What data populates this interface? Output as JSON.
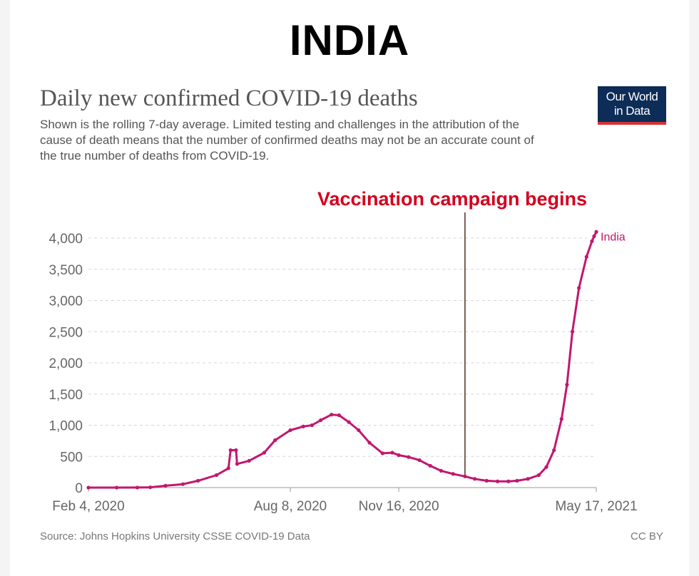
{
  "banner": "INDIA",
  "title": "Daily new confirmed COVID-19 deaths",
  "subtitle": "Shown is the rolling 7-day average. Limited testing and challenges in the attribution of the cause of death means that the number of confirmed deaths may not be an accurate count of the true number of deaths from COVID-19.",
  "logo": {
    "line1": "Our World",
    "line2": "in Data"
  },
  "annotation": "Vaccination campaign begins",
  "source": "Source: Johns Hopkins University CSSE COVID-19 Data",
  "license": "CC BY",
  "colors": {
    "series": "#c2176e",
    "annotation": "#d4001f",
    "marker_line": "#5a3a2a",
    "logo_bg": "#0d2c57",
    "logo_accent": "#d23333"
  },
  "chart_data": {
    "type": "line",
    "title": "Daily new confirmed COVID-19 deaths",
    "xlabel": "",
    "ylabel": "",
    "ylim": [
      0,
      4000
    ],
    "yticks": [
      0,
      500,
      1000,
      1500,
      2000,
      2500,
      3000,
      3500,
      4000
    ],
    "ytick_labels": [
      "0",
      "500",
      "1,000",
      "1,500",
      "2,000",
      "2,500",
      "3,000",
      "3,500",
      "4,000"
    ],
    "xticks": [
      "Feb 4, 2020",
      "Aug 8, 2020",
      "Nov 16, 2020",
      "May 17, 2021"
    ],
    "grid": "horizontal dashed",
    "annotation_date": "2021-01-16",
    "series": [
      {
        "name": "India",
        "points": [
          [
            "2020-02-04",
            0
          ],
          [
            "2020-03-01",
            0
          ],
          [
            "2020-03-20",
            1
          ],
          [
            "2020-04-01",
            5
          ],
          [
            "2020-04-15",
            30
          ],
          [
            "2020-05-01",
            55
          ],
          [
            "2020-05-15",
            110
          ],
          [
            "2020-06-01",
            200
          ],
          [
            "2020-06-12",
            310
          ],
          [
            "2020-06-14",
            600
          ],
          [
            "2020-06-19",
            600
          ],
          [
            "2020-06-20",
            380
          ],
          [
            "2020-07-01",
            430
          ],
          [
            "2020-07-15",
            560
          ],
          [
            "2020-07-25",
            760
          ],
          [
            "2020-08-08",
            920
          ],
          [
            "2020-08-20",
            980
          ],
          [
            "2020-08-28",
            1000
          ],
          [
            "2020-09-05",
            1080
          ],
          [
            "2020-09-15",
            1170
          ],
          [
            "2020-09-22",
            1160
          ],
          [
            "2020-10-01",
            1050
          ],
          [
            "2020-10-10",
            920
          ],
          [
            "2020-10-20",
            720
          ],
          [
            "2020-11-01",
            550
          ],
          [
            "2020-11-10",
            560
          ],
          [
            "2020-11-16",
            520
          ],
          [
            "2020-11-25",
            490
          ],
          [
            "2020-12-05",
            440
          ],
          [
            "2020-12-15",
            350
          ],
          [
            "2020-12-25",
            270
          ],
          [
            "2021-01-05",
            220
          ],
          [
            "2021-01-16",
            180
          ],
          [
            "2021-01-25",
            140
          ],
          [
            "2021-02-05",
            110
          ],
          [
            "2021-02-15",
            100
          ],
          [
            "2021-02-25",
            100
          ],
          [
            "2021-03-05",
            110
          ],
          [
            "2021-03-15",
            140
          ],
          [
            "2021-03-25",
            200
          ],
          [
            "2021-04-01",
            330
          ],
          [
            "2021-04-08",
            600
          ],
          [
            "2021-04-15",
            1100
          ],
          [
            "2021-04-20",
            1650
          ],
          [
            "2021-04-25",
            2500
          ],
          [
            "2021-05-01",
            3200
          ],
          [
            "2021-05-08",
            3700
          ],
          [
            "2021-05-13",
            3950
          ],
          [
            "2021-05-15",
            4030
          ],
          [
            "2021-05-17",
            4100
          ]
        ]
      }
    ]
  }
}
